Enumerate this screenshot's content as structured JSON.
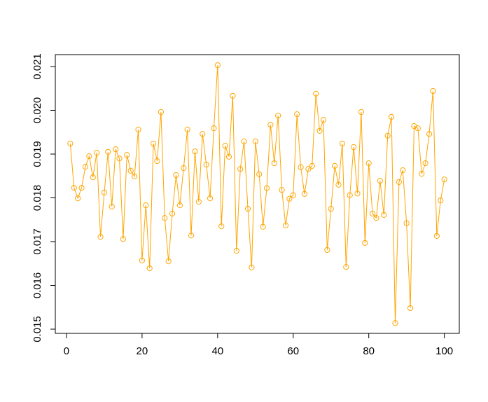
{
  "chart_data": {
    "type": "line",
    "markers": "open-circle",
    "x": [
      1,
      2,
      3,
      4,
      5,
      6,
      7,
      8,
      9,
      10,
      11,
      12,
      13,
      14,
      15,
      16,
      17,
      18,
      19,
      20,
      21,
      22,
      23,
      24,
      25,
      26,
      27,
      28,
      29,
      30,
      31,
      32,
      33,
      34,
      35,
      36,
      37,
      38,
      39,
      40,
      41,
      42,
      43,
      44,
      45,
      46,
      47,
      48,
      49,
      50,
      51,
      52,
      53,
      54,
      55,
      56,
      57,
      58,
      59,
      60,
      61,
      62,
      63,
      64,
      65,
      66,
      67,
      68,
      69,
      70,
      71,
      72,
      73,
      74,
      75,
      76,
      77,
      78,
      79,
      80,
      81,
      82,
      83,
      84,
      85,
      86,
      87,
      88,
      89,
      90,
      91,
      92,
      93,
      94,
      95,
      96,
      97,
      98,
      99,
      100
    ],
    "series": [
      {
        "color": "#FFA500",
        "values": [
          0.01924,
          0.01823,
          0.01799,
          0.01823,
          0.01871,
          0.01895,
          0.01847,
          0.01903,
          0.01711,
          0.01812,
          0.01905,
          0.0178,
          0.01911,
          0.0189,
          0.01706,
          0.01898,
          0.01862,
          0.01849,
          0.01956,
          0.01657,
          0.01783,
          0.01639,
          0.01924,
          0.01884,
          0.01996,
          0.01754,
          0.01655,
          0.01764,
          0.01852,
          0.01783,
          0.01868,
          0.01956,
          0.01714,
          0.01906,
          0.01791,
          0.01946,
          0.01876,
          0.01799,
          0.01959,
          0.02103,
          0.01735,
          0.01919,
          0.01894,
          0.02033,
          0.01679,
          0.01866,
          0.01929,
          0.01775,
          0.01641,
          0.01929,
          0.01854,
          0.01734,
          0.01822,
          0.01967,
          0.01879,
          0.01988,
          0.01818,
          0.01737,
          0.01798,
          0.01806,
          0.01991,
          0.0187,
          0.01809,
          0.01866,
          0.01873,
          0.02038,
          0.01953,
          0.01978,
          0.01681,
          0.01775,
          0.01873,
          0.0183,
          0.01924,
          0.01642,
          0.01806,
          0.01916,
          0.0181,
          0.01996,
          0.01697,
          0.01879,
          0.01764,
          0.01754,
          0.01839,
          0.01761,
          0.01942,
          0.01985,
          0.01514,
          0.01836,
          0.01863,
          0.01742,
          0.01548,
          0.01964,
          0.01959,
          0.01855,
          0.01879,
          0.01946,
          0.02044,
          0.01713,
          0.01794,
          0.01842
        ]
      }
    ],
    "xlim": [
      -2.96,
      103.96
    ],
    "xticks": [
      0,
      20,
      40,
      60,
      80,
      100
    ],
    "ylim": [
      0.014904,
      0.021272
    ],
    "yticks": [
      0.015,
      0.016,
      0.017,
      0.018,
      0.019,
      {
        "value": 0.02,
        "label": "0.020"
      },
      0.021
    ]
  }
}
